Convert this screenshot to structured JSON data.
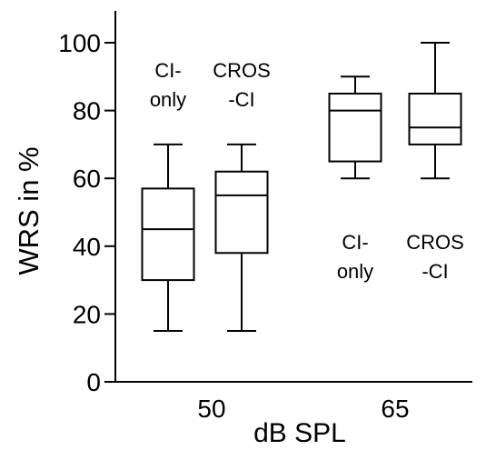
{
  "chart_data": {
    "type": "box",
    "xlabel": "dB SPL",
    "ylabel": "WRS in %",
    "ylim": [
      0,
      100
    ],
    "yticks": [
      0,
      20,
      40,
      60,
      80,
      100
    ],
    "groups": [
      {
        "label": "50",
        "boxes": [
          {
            "name_lines": [
              "CI-",
              "only"
            ],
            "name_position": "above",
            "min": 15,
            "q1": 30,
            "median": 45,
            "q3": 57,
            "max": 70
          },
          {
            "name_lines": [
              "CROS",
              "-CI"
            ],
            "name_position": "above",
            "min": 15,
            "q1": 38,
            "median": 55,
            "q3": 62,
            "max": 70
          }
        ]
      },
      {
        "label": "65",
        "boxes": [
          {
            "name_lines": [
              "CI-",
              "only"
            ],
            "name_position": "below",
            "min": 60,
            "q1": 65,
            "median": 80,
            "q3": 85,
            "max": 90
          },
          {
            "name_lines": [
              "CROS",
              "-CI"
            ],
            "name_position": "below",
            "min": 60,
            "q1": 70,
            "median": 75,
            "q3": 85,
            "max": 100
          }
        ]
      }
    ],
    "grid": false,
    "legend": "none",
    "colors": {
      "axis": "#000000",
      "box_fill": "#ffffff",
      "box_stroke": "#000000",
      "text": "#000000"
    }
  }
}
